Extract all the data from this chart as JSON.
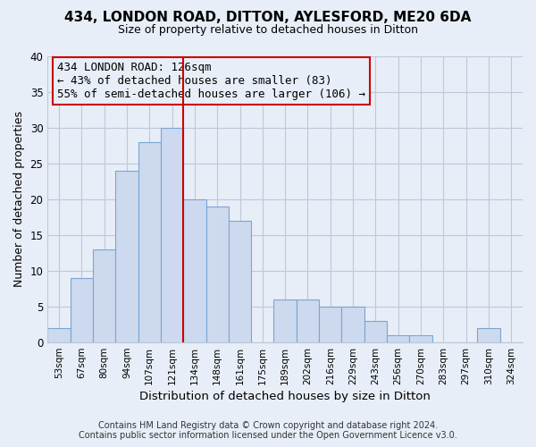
{
  "title": "434, LONDON ROAD, DITTON, AYLESFORD, ME20 6DA",
  "subtitle": "Size of property relative to detached houses in Ditton",
  "xlabel": "Distribution of detached houses by size in Ditton",
  "ylabel": "Number of detached properties",
  "footer_line1": "Contains HM Land Registry data © Crown copyright and database right 2024.",
  "footer_line2": "Contains public sector information licensed under the Open Government Licence v3.0.",
  "bin_labels": [
    "53sqm",
    "67sqm",
    "80sqm",
    "94sqm",
    "107sqm",
    "121sqm",
    "134sqm",
    "148sqm",
    "161sqm",
    "175sqm",
    "189sqm",
    "202sqm",
    "216sqm",
    "229sqm",
    "243sqm",
    "256sqm",
    "270sqm",
    "283sqm",
    "297sqm",
    "310sqm",
    "324sqm"
  ],
  "bar_heights": [
    2,
    9,
    13,
    24,
    28,
    30,
    20,
    19,
    17,
    0,
    6,
    6,
    5,
    5,
    3,
    1,
    1,
    0,
    0,
    2,
    0
  ],
  "bar_fill_color": "#ccd9ee",
  "bar_edge_color": "#7ba4d4",
  "vline_color": "#cc0000",
  "vline_x_index": 5,
  "annotation_box_edge_color": "#cc0000",
  "annotation_line1": "434 LONDON ROAD: 126sqm",
  "annotation_line2": "← 43% of detached houses are smaller (83)",
  "annotation_line3": "55% of semi-detached houses are larger (106) →",
  "ylim": [
    0,
    40
  ],
  "yticks": [
    0,
    5,
    10,
    15,
    20,
    25,
    30,
    35,
    40
  ],
  "background_color": "#e8eef7",
  "plot_background_color": "#e8eef7",
  "grid_color": "#c0c8d8"
}
